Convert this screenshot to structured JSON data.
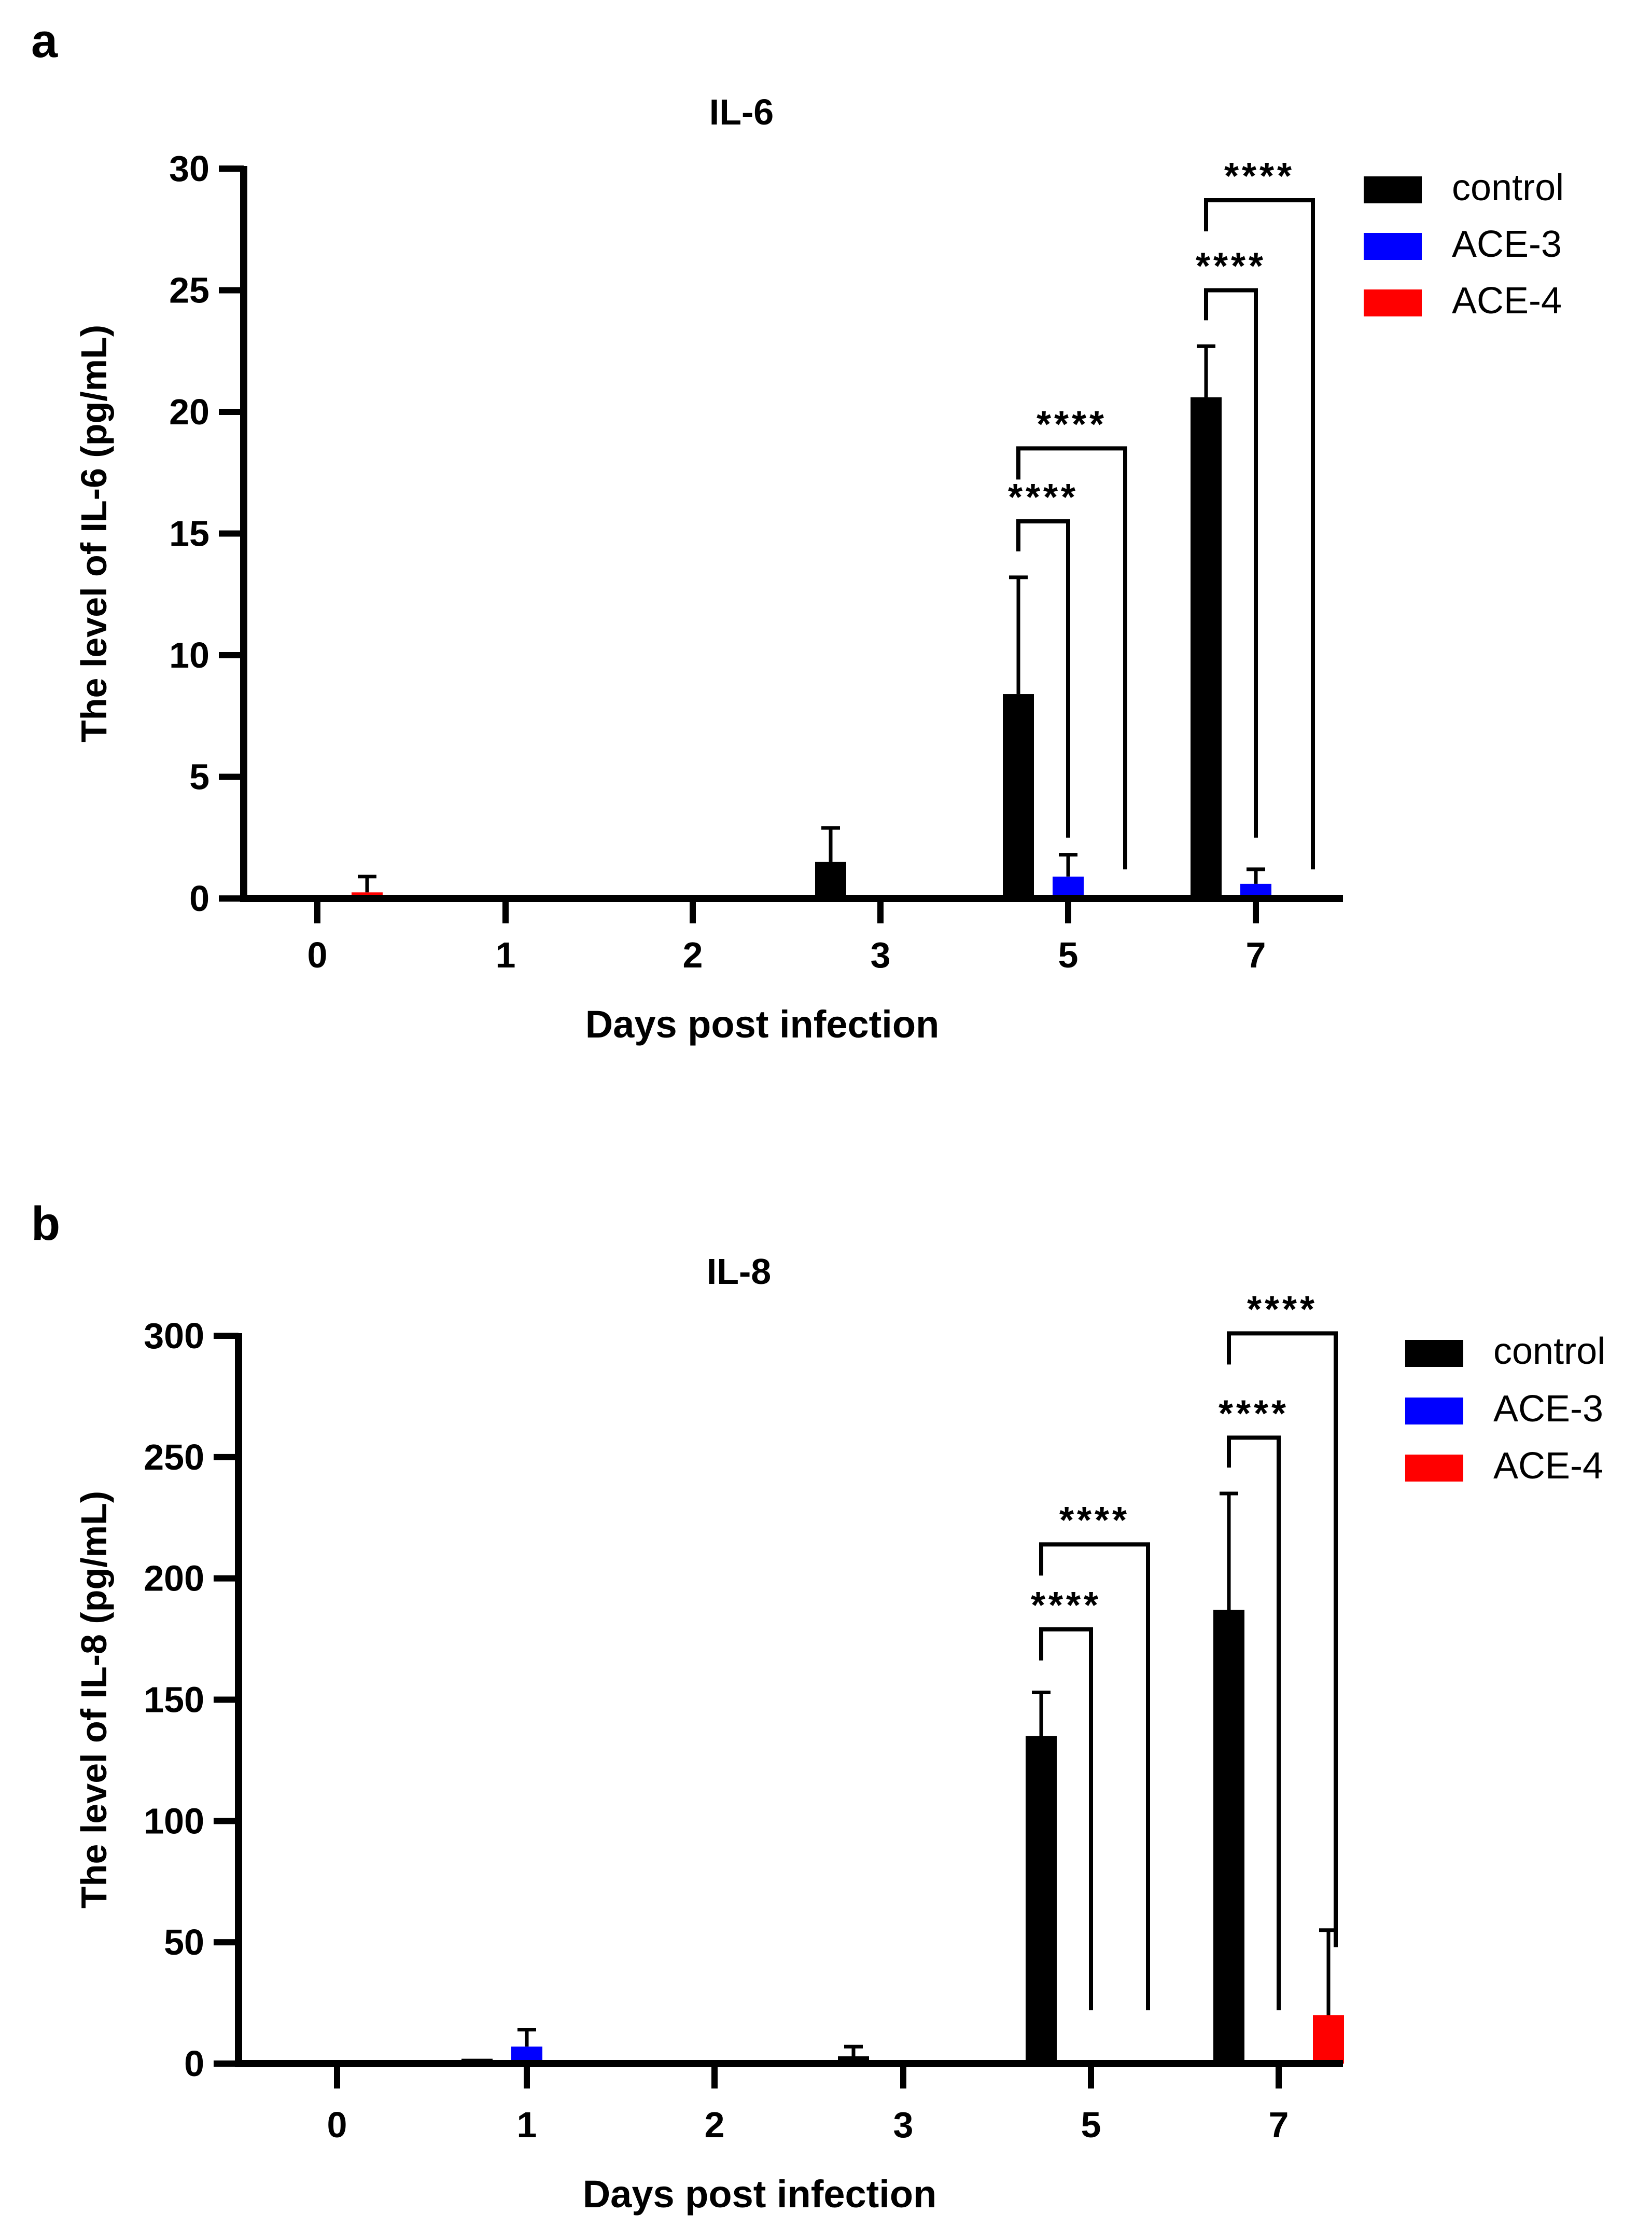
{
  "colors": {
    "control": "#000000",
    "ACE-3": "#0000ff",
    "ACE-4": "#ff0000"
  },
  "chart_data": [
    {
      "panel_label": "a",
      "type": "bar",
      "title": "IL-6",
      "xlabel": "Days post infection",
      "ylabel": "The level of IL-6 (pg/mL)",
      "ylim": [
        0,
        30
      ],
      "yticks": [
        0,
        5,
        10,
        15,
        20,
        25,
        30
      ],
      "ytick_labels": [
        "0",
        "5",
        "10",
        "15",
        "20",
        "25",
        "30"
      ],
      "categories": [
        "0",
        "1",
        "2",
        "3",
        "5",
        "7"
      ],
      "legend": [
        "control",
        "ACE-3",
        "ACE-4"
      ],
      "legend_position": "top-right",
      "series": [
        {
          "name": "control",
          "values": [
            0,
            0,
            0,
            1.5,
            8.4,
            20.6
          ],
          "errors": [
            0,
            0,
            0,
            1.4,
            4.8,
            2.1
          ]
        },
        {
          "name": "ACE-3",
          "values": [
            0,
            0,
            0,
            0,
            0.9,
            0.6
          ],
          "errors": [
            0,
            0,
            0,
            0,
            0.9,
            0.6
          ]
        },
        {
          "name": "ACE-4",
          "values": [
            0.25,
            0,
            0,
            0,
            0,
            0
          ],
          "errors": [
            0.65,
            0,
            0,
            0,
            0,
            0
          ]
        }
      ],
      "significance": [
        {
          "category": 4,
          "to": "ACE-3",
          "label": "****",
          "bracket_y": 15.5,
          "leg_bottom": 2.5
        },
        {
          "category": 4,
          "to": "ACE-4",
          "label": "****",
          "bracket_y": 18.5,
          "leg_bottom": 1.2
        },
        {
          "category": 5,
          "to": "ACE-3",
          "label": "****",
          "bracket_y": 25.0,
          "leg_bottom": 2.5
        },
        {
          "category": 5,
          "to": "ACE-4",
          "label": "****",
          "bracket_y": 28.7,
          "leg_bottom": 1.2
        }
      ]
    },
    {
      "panel_label": "b",
      "type": "bar",
      "title": "IL-8",
      "xlabel": "Days post infection",
      "ylabel": "The level of IL-8 (pg/mL)",
      "ylim": [
        0,
        300
      ],
      "yticks": [
        0,
        50,
        100,
        150,
        200,
        250,
        300
      ],
      "ytick_labels": [
        "0",
        "50",
        "100",
        "150",
        "200",
        "250",
        "300"
      ],
      "categories": [
        "0",
        "1",
        "2",
        "3",
        "5",
        "7"
      ],
      "legend": [
        "control",
        "ACE-3",
        "ACE-4"
      ],
      "legend_position": "top-right",
      "series": [
        {
          "name": "control",
          "values": [
            0,
            2,
            1,
            3,
            135,
            187
          ],
          "errors": [
            0,
            0,
            0,
            4,
            18,
            48
          ]
        },
        {
          "name": "ACE-3",
          "values": [
            0,
            7,
            0,
            0,
            1,
            0
          ],
          "errors": [
            0,
            7,
            0,
            0,
            0,
            0
          ]
        },
        {
          "name": "ACE-4",
          "values": [
            0,
            0,
            0,
            0,
            0,
            20
          ],
          "errors": [
            0,
            0,
            0,
            0,
            0,
            35
          ]
        }
      ],
      "significance": [
        {
          "category": 4,
          "to": "ACE-3",
          "label": "****",
          "bracket_y": 179,
          "leg_bottom": 22
        },
        {
          "category": 4,
          "to": "ACE-4",
          "label": "****",
          "bracket_y": 214,
          "leg_bottom": 22
        },
        {
          "category": 5,
          "to": "ACE-3",
          "label": "****",
          "bracket_y": 258,
          "leg_bottom": 22
        },
        {
          "category": 5,
          "to": "ACE-4",
          "label": "****",
          "bracket_y": 301,
          "leg_bottom": 48
        }
      ]
    }
  ]
}
